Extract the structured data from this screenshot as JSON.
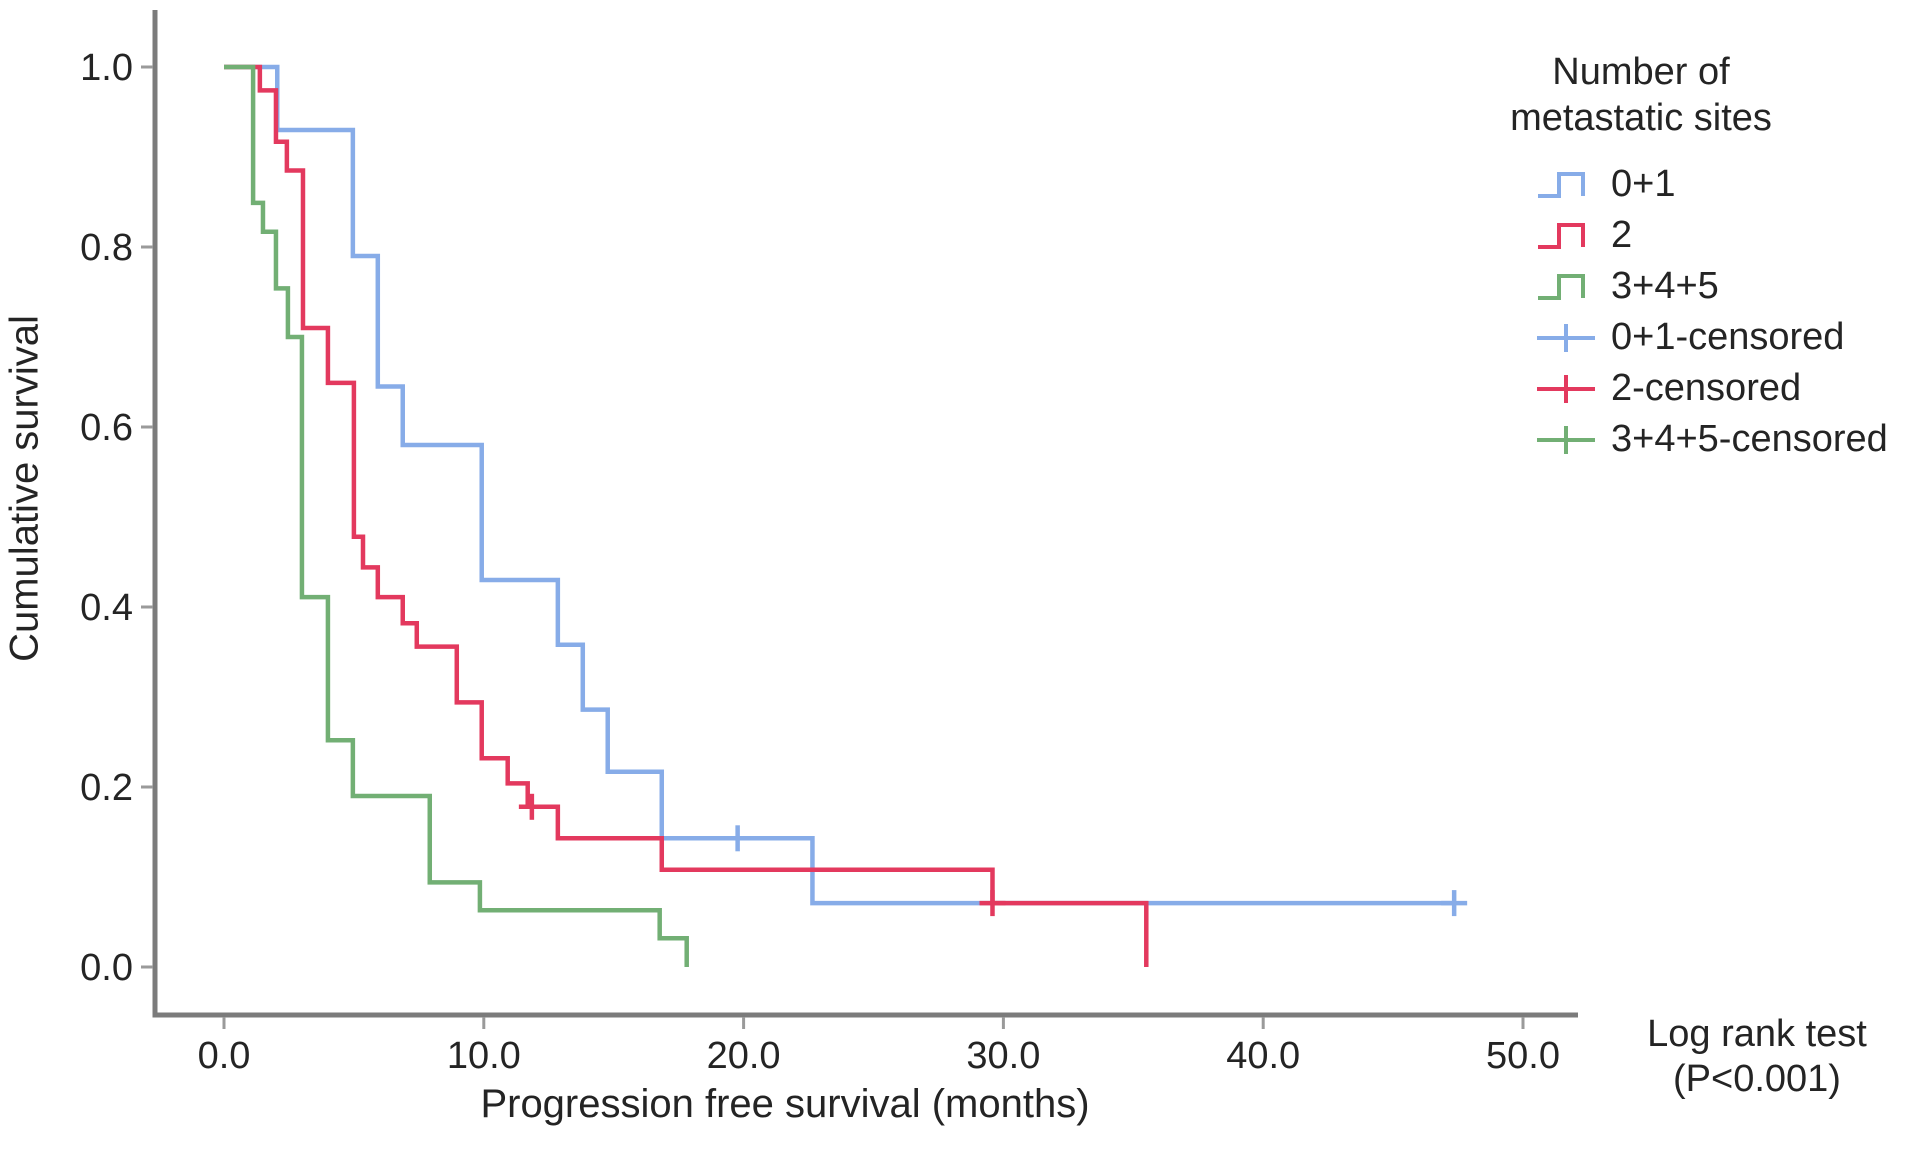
{
  "chart_data": {
    "type": "line",
    "subtype": "kaplan-meier-step",
    "title": "",
    "xlabel": "Progression free survival (months)",
    "ylabel": "Cumulative survival",
    "xlim": [
      0,
      52
    ],
    "ylim": [
      0,
      1.0
    ],
    "x_tick_values": [
      0,
      10,
      20,
      30,
      40,
      50
    ],
    "x_tick_labels": [
      "0.0",
      "10.0",
      "20.0",
      "30.0",
      "40.0",
      "50.0"
    ],
    "y_tick_values": [
      0,
      0.2,
      0.4,
      0.6,
      0.8,
      1.0
    ],
    "y_tick_labels": [
      "0.0",
      "0.2",
      "0.4",
      "0.6",
      "0.8",
      "1.0"
    ],
    "grid": false,
    "legend_position": "right",
    "series": [
      {
        "name": "0+1",
        "color": "#87ace8",
        "steps": [
          [
            0,
            1.0
          ],
          [
            2.05,
            0.93
          ],
          [
            4.96,
            0.79
          ],
          [
            5.92,
            0.645
          ],
          [
            6.88,
            0.58
          ],
          [
            9.92,
            0.43
          ],
          [
            12.85,
            0.358
          ],
          [
            13.81,
            0.286
          ],
          [
            14.77,
            0.217
          ],
          [
            16.85,
            0.143
          ],
          [
            22.65,
            0.071
          ],
          [
            47.35,
            0.071
          ]
        ],
        "censored": [
          [
            19.77,
            0.143
          ],
          [
            47.35,
            0.071
          ]
        ]
      },
      {
        "name": "2",
        "color": "#e3395e",
        "steps": [
          [
            0,
            1.0
          ],
          [
            1.38,
            0.974
          ],
          [
            2.0,
            0.917
          ],
          [
            2.42,
            0.885
          ],
          [
            3.04,
            0.71
          ],
          [
            4.0,
            0.649
          ],
          [
            5.0,
            0.478
          ],
          [
            5.35,
            0.444
          ],
          [
            5.92,
            0.411
          ],
          [
            6.88,
            0.382
          ],
          [
            7.42,
            0.356
          ],
          [
            8.96,
            0.294
          ],
          [
            9.92,
            0.232
          ],
          [
            10.92,
            0.204
          ],
          [
            11.69,
            0.178
          ],
          [
            12.85,
            0.143
          ],
          [
            16.85,
            0.108
          ],
          [
            29.58,
            0.071
          ],
          [
            35.5,
            0.0
          ]
        ],
        "censored": [
          [
            11.85,
            0.178
          ],
          [
            29.58,
            0.071
          ]
        ]
      },
      {
        "name": "3+4+5",
        "color": "#72af74",
        "steps": [
          [
            0,
            1.0
          ],
          [
            1.12,
            0.849
          ],
          [
            1.5,
            0.817
          ],
          [
            2.0,
            0.754
          ],
          [
            2.46,
            0.7
          ],
          [
            3.0,
            0.411
          ],
          [
            4.0,
            0.252
          ],
          [
            4.96,
            0.19
          ],
          [
            7.92,
            0.094
          ],
          [
            9.85,
            0.063
          ],
          [
            16.77,
            0.032
          ],
          [
            17.81,
            0.0
          ]
        ],
        "censored": []
      }
    ]
  },
  "legend": {
    "title": "Number of metastatic sites",
    "entries": [
      {
        "label": "0+1",
        "color": "#87ace8",
        "glyph": "step-line"
      },
      {
        "label": "2",
        "color": "#e3395e",
        "glyph": "step-line"
      },
      {
        "label": "3+4+5",
        "color": "#72af74",
        "glyph": "step-line"
      },
      {
        "label": "0+1-censored",
        "color": "#87ace8",
        "glyph": "plus-line"
      },
      {
        "label": "2-censored",
        "color": "#e3395e",
        "glyph": "plus-line"
      },
      {
        "label": "3+4+5-censored",
        "color": "#72af74",
        "glyph": "plus-line"
      }
    ]
  },
  "annotation": {
    "line1": "Log rank test",
    "line2": "(P<0.001)"
  },
  "axis": {
    "color": "#7b7b7b",
    "tick_color": "#9a9a9a"
  }
}
